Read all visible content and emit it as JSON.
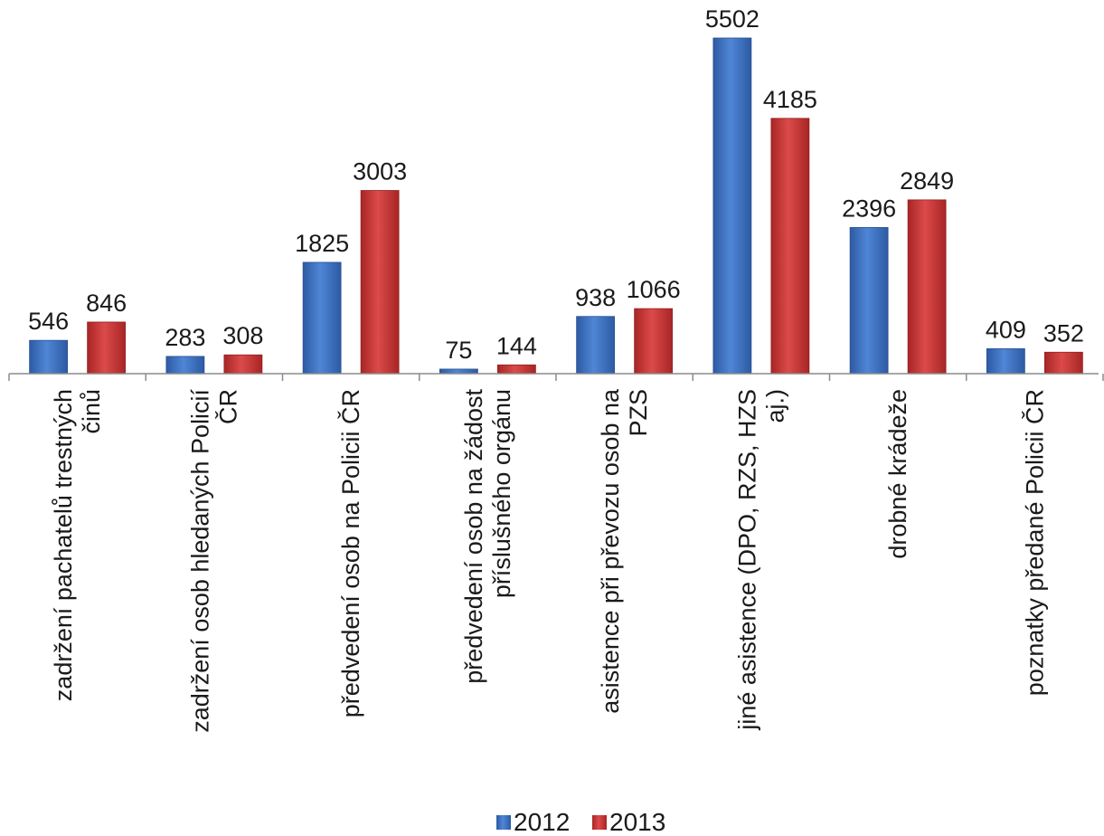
{
  "chart_data": {
    "type": "bar",
    "title": "",
    "xlabel": "",
    "ylabel": "",
    "ylim": [
      0,
      5600
    ],
    "grid": false,
    "legend_position": "bottom",
    "categories": [
      [
        "zadržení pachatelů trestných",
        "činů"
      ],
      [
        "zadržení osob hledaných Policií",
        "ČR"
      ],
      [
        "předvedení osob na Policii ČR"
      ],
      [
        "předvedení osob na žádost",
        "příslušného orgánu"
      ],
      [
        "asistence při převozu osob na",
        "PZS"
      ],
      [
        "jiné asistence (DPO, RZS, HZS",
        "aj.)"
      ],
      [
        "drobné krádeže"
      ],
      [
        "poznatky předané Policii ČR"
      ]
    ],
    "series": [
      {
        "name": "2012",
        "color": "#3f70bf",
        "values": [
          546,
          283,
          1825,
          75,
          938,
          5502,
          2396,
          409
        ]
      },
      {
        "name": "2013",
        "color": "#c63838",
        "values": [
          846,
          308,
          3003,
          144,
          1066,
          4185,
          2849,
          352
        ]
      }
    ]
  }
}
